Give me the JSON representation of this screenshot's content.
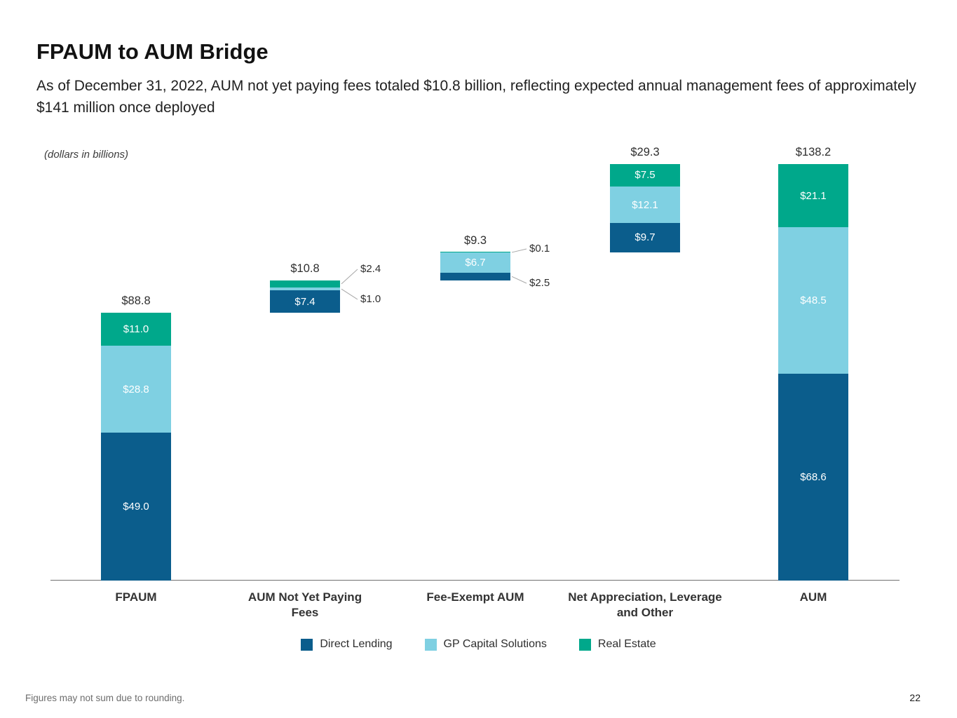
{
  "page": {
    "title": "FPAUM to AUM Bridge",
    "subtitle": "As of December 31, 2022, AUM not yet paying fees totaled $10.8 billion, reflecting expected annual management fees of approximately $141 million once deployed",
    "units_note": "(dollars in billions)",
    "footnote": "Figures may not sum due to rounding.",
    "page_number": "22"
  },
  "legend": [
    {
      "label": "Direct Lending",
      "color": "#0b5d8c"
    },
    {
      "label": "GP Capital Solutions",
      "color": "#7fd0e2"
    },
    {
      "label": "Real Estate",
      "color": "#00a88b"
    }
  ],
  "chart_data": {
    "type": "bar",
    "subtype": "stacked-waterfall-bridge",
    "title": "FPAUM to AUM Bridge",
    "units": "dollars in billions",
    "ylim": [
      0,
      150
    ],
    "grid": false,
    "legend_position": "bottom-center",
    "categories": [
      "FPAUM",
      "AUM Not Yet Paying Fees",
      "Fee-Exempt AUM",
      "Net Appreciation, Leverage and Other",
      "AUM"
    ],
    "series": [
      "Direct Lending",
      "GP Capital Solutions",
      "Real Estate"
    ],
    "colors": {
      "Direct Lending": "#0b5d8c",
      "GP Capital Solutions": "#7fd0e2",
      "Real Estate": "#00a88b"
    },
    "bars": [
      {
        "category": "FPAUM",
        "category_lines": [
          "FPAUM"
        ],
        "start": 0,
        "total": 88.8,
        "total_label": "$88.8",
        "segments": [
          {
            "series": "Direct Lending",
            "value": 49.0,
            "label": "$49.0",
            "label_pos": "inside"
          },
          {
            "series": "GP Capital Solutions",
            "value": 28.8,
            "label": "$28.8",
            "label_pos": "inside"
          },
          {
            "series": "Real Estate",
            "value": 11.0,
            "label": "$11.0",
            "label_pos": "inside"
          }
        ]
      },
      {
        "category": "AUM Not Yet Paying Fees",
        "category_lines": [
          "AUM Not Yet Paying",
          "Fees"
        ],
        "start": 88.8,
        "total": 10.8,
        "total_label": "$10.8",
        "segments": [
          {
            "series": "Direct Lending",
            "value": 7.4,
            "label": "$7.4",
            "label_pos": "inside"
          },
          {
            "series": "GP Capital Solutions",
            "value": 1.0,
            "label": "$1.0",
            "label_pos": "callout"
          },
          {
            "series": "Real Estate",
            "value": 2.4,
            "label": "$2.4",
            "label_pos": "callout"
          }
        ]
      },
      {
        "category": "Fee-Exempt AUM",
        "category_lines": [
          "Fee-Exempt AUM"
        ],
        "start": 99.6,
        "total": 9.3,
        "total_label": "$9.3",
        "segments": [
          {
            "series": "Direct Lending",
            "value": 2.5,
            "label": "$2.5",
            "label_pos": "callout"
          },
          {
            "series": "GP Capital Solutions",
            "value": 6.7,
            "label": "$6.7",
            "label_pos": "inside"
          },
          {
            "series": "Real Estate",
            "value": 0.1,
            "label": "$0.1",
            "label_pos": "callout"
          }
        ]
      },
      {
        "category": "Net Appreciation, Leverage and Other",
        "category_lines": [
          "Net Appreciation, Leverage",
          "and Other"
        ],
        "start": 108.9,
        "total": 29.3,
        "total_label": "$29.3",
        "segments": [
          {
            "series": "Direct Lending",
            "value": 9.7,
            "label": "$9.7",
            "label_pos": "inside"
          },
          {
            "series": "GP Capital Solutions",
            "value": 12.1,
            "label": "$12.1",
            "label_pos": "inside"
          },
          {
            "series": "Real Estate",
            "value": 7.5,
            "label": "$7.5",
            "label_pos": "inside"
          }
        ]
      },
      {
        "category": "AUM",
        "category_lines": [
          "AUM"
        ],
        "start": 0,
        "total": 138.2,
        "total_label": "$138.2",
        "segments": [
          {
            "series": "Direct Lending",
            "value": 68.6,
            "label": "$68.6",
            "label_pos": "inside"
          },
          {
            "series": "GP Capital Solutions",
            "value": 48.5,
            "label": "$48.5",
            "label_pos": "inside"
          },
          {
            "series": "Real Estate",
            "value": 21.1,
            "label": "$21.1",
            "label_pos": "inside"
          }
        ]
      }
    ]
  }
}
